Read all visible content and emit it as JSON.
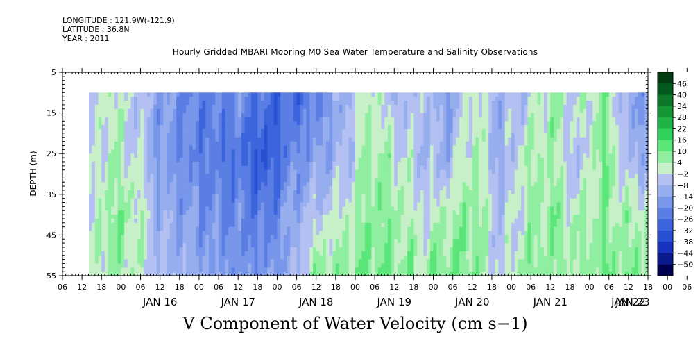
{
  "header": {
    "longitude": "LONGITUDE : 121.9W(-121.9)",
    "latitude": "LATITUDE : 36.8N",
    "year": "YEAR : 2011",
    "title": "Hourly Gridded MBARI Mooring M0 Sea Water Temperature and Salinity Observations"
  },
  "bottom_title": "V Component of Water Velocity (cm s−1)",
  "chart_data": {
    "type": "heatmap",
    "title": "Hourly Gridded MBARI Mooring M0 Sea Water Temperature and Salinity Observations",
    "subtitle": "V Component of Water Velocity (cm s−1)",
    "ylabel": "DEPTH (m)",
    "xlabel": "",
    "y_ticks": [
      5,
      15,
      25,
      35,
      45,
      55
    ],
    "ylim": [
      55,
      5
    ],
    "y_data_range": [
      10,
      55
    ],
    "x_hour_ticks": [
      "06",
      "12",
      "18",
      "00",
      "06",
      "12",
      "18",
      "00",
      "06",
      "12",
      "18",
      "00",
      "06",
      "12",
      "18",
      "00",
      "06",
      "12",
      "18",
      "00",
      "06",
      "12",
      "18",
      "00",
      "06",
      "12",
      "18",
      "00",
      "06",
      "12",
      "18",
      "00",
      "06"
    ],
    "x_day_labels": [
      "JAN 16",
      "JAN 17",
      "JAN 18",
      "JAN 19",
      "JAN 20",
      "JAN 21",
      "JAN 22",
      "JAN 23"
    ],
    "x_range_hours": [
      0,
      180
    ],
    "data_start_hour": 6,
    "colorbar": {
      "levels": [
        -50,
        -44,
        -38,
        -32,
        -26,
        -20,
        -14,
        -8,
        -2,
        4,
        10,
        16,
        22,
        28,
        34,
        40,
        46
      ],
      "labels": [
        "46",
        "40",
        "34",
        "28",
        "22",
        "16",
        "10",
        "4",
        "−2",
        "−8",
        "−14",
        "−20",
        "−26",
        "−32",
        "−38",
        "−44",
        "−50"
      ],
      "colors": [
        "#000050",
        "#0a1a8c",
        "#1632be",
        "#2850d2",
        "#3c64dc",
        "#5a7ee4",
        "#7896ea",
        "#96aeee",
        "#b4c0f2",
        "#c8f0c8",
        "#90eea0",
        "#5ae678",
        "#2ed25a",
        "#1eb446",
        "#149632",
        "#0c7828",
        "#045a1c",
        "#023c10"
      ]
    },
    "samples": {
      "times_hours": [
        6,
        14,
        22,
        30,
        38,
        46,
        54,
        62,
        70,
        78,
        86,
        94,
        102,
        110,
        118,
        126,
        134,
        142,
        150,
        158,
        166,
        174
      ],
      "depths_m": [
        10,
        25,
        40,
        55
      ],
      "values": [
        [
          -8,
          2,
          -4,
          -14,
          -20,
          -22,
          -18,
          -26,
          -28,
          -20,
          -10,
          4,
          -8,
          -4,
          -14,
          2,
          -10,
          -6,
          6,
          -2,
          8,
          -14
        ],
        [
          -10,
          4,
          -2,
          -16,
          -20,
          -24,
          -26,
          -34,
          -20,
          -14,
          -8,
          6,
          2,
          -6,
          -10,
          6,
          -12,
          4,
          4,
          -8,
          10,
          -10
        ],
        [
          -6,
          8,
          4,
          -10,
          -14,
          -18,
          -20,
          -24,
          -12,
          -4,
          2,
          8,
          6,
          -2,
          4,
          8,
          -6,
          2,
          8,
          2,
          6,
          4
        ],
        [
          -4,
          6,
          2,
          -8,
          -10,
          -14,
          -16,
          -18,
          -10,
          8,
          6,
          10,
          8,
          6,
          10,
          8,
          -4,
          8,
          6,
          4,
          10,
          8
        ]
      ]
    }
  }
}
